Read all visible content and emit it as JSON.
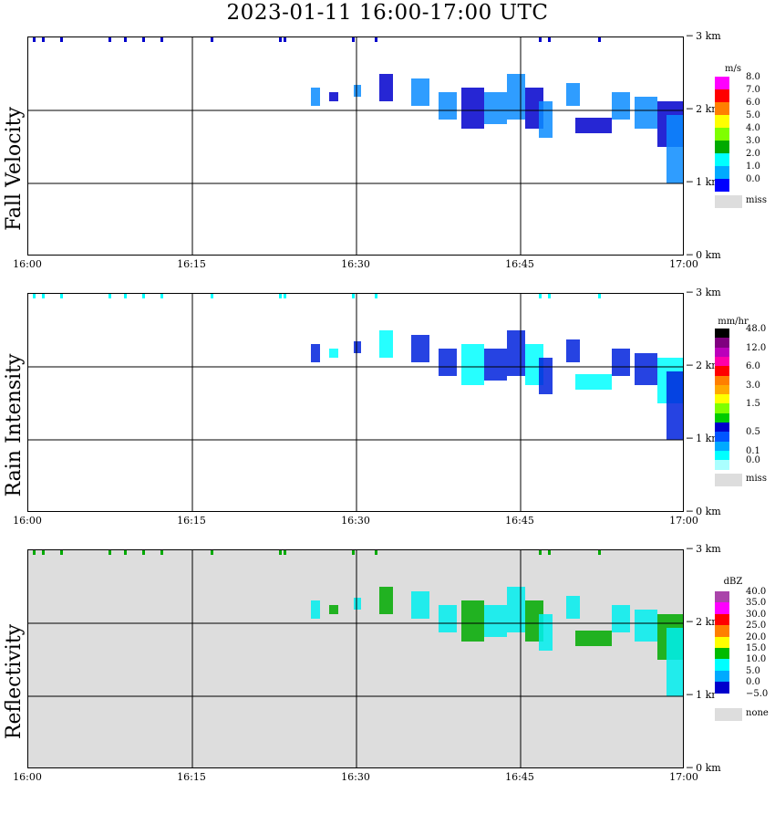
{
  "title": "2023-01-11   16:00-17:00 UTC",
  "chart_data": [
    {
      "type": "heatmap",
      "ylabel": "Fall Velocity",
      "unit": "m/s",
      "x_ticks": [
        "16:00",
        "16:15",
        "16:30",
        "16:45",
        "17:00"
      ],
      "y_ticks": [
        "0 km",
        "1 km",
        "2 km",
        "3 km"
      ],
      "xlim": [
        "16:00",
        "17:00"
      ],
      "ylim_km": [
        0,
        3
      ],
      "grid": true,
      "background": "#ffffff",
      "legend_title": "m/s",
      "legend": [
        {
          "label": "8.0",
          "color": "#ff00ff"
        },
        {
          "label": "7.0",
          "color": "#ff0000"
        },
        {
          "label": "6.0",
          "color": "#ff7f00"
        },
        {
          "label": "5.0",
          "color": "#ffff00"
        },
        {
          "label": "4.0",
          "color": "#7fff00"
        },
        {
          "label": "3.0",
          "color": "#00aa00"
        },
        {
          "label": "2.0",
          "color": "#00ffff"
        },
        {
          "label": "1.0",
          "color": "#00aaff"
        },
        {
          "label": "0.0",
          "color": "#0000ff"
        },
        {
          "label": "miss",
          "color": "#dddddd"
        }
      ],
      "dominant_color": "#0a8cff",
      "accent_color": "#0000cc"
    },
    {
      "type": "heatmap",
      "ylabel": "Rain Intensity",
      "unit": "mm/hr",
      "x_ticks": [
        "16:00",
        "16:15",
        "16:30",
        "16:45",
        "17:00"
      ],
      "y_ticks": [
        "0 km",
        "1 km",
        "2 km",
        "3 km"
      ],
      "xlim": [
        "16:00",
        "17:00"
      ],
      "ylim_km": [
        0,
        3
      ],
      "grid": true,
      "background": "#ffffff",
      "legend_title": "mm/hr",
      "legend": [
        {
          "label": "48.0",
          "color": "#000000"
        },
        {
          "label": "",
          "color": "#7f007f"
        },
        {
          "label": "12.0",
          "color": "#bb00bb"
        },
        {
          "label": "",
          "color": "#ff00aa"
        },
        {
          "label": "6.0",
          "color": "#ff0000"
        },
        {
          "label": "",
          "color": "#ff7f00"
        },
        {
          "label": "3.0",
          "color": "#ffaa00"
        },
        {
          "label": "",
          "color": "#ffff00"
        },
        {
          "label": "1.5",
          "color": "#7fff00"
        },
        {
          "label": "",
          "color": "#00cc00"
        },
        {
          "label": "",
          "color": "#0000cc"
        },
        {
          "label": "0.5",
          "color": "#0055ff"
        },
        {
          "label": "",
          "color": "#00aaff"
        },
        {
          "label": "0.1",
          "color": "#00ffff"
        },
        {
          "label": "0.0",
          "color": "#aaffff"
        },
        {
          "label": "miss",
          "color": "#dddddd"
        }
      ],
      "dominant_color": "#0022dd",
      "accent_color": "#00ffff"
    },
    {
      "type": "heatmap",
      "ylabel": "Reflectivity",
      "unit": "dBZ",
      "x_ticks": [
        "16:00",
        "16:15",
        "16:30",
        "16:45",
        "17:00"
      ],
      "y_ticks": [
        "0 km",
        "1 km",
        "2 km",
        "3 km"
      ],
      "xlim": [
        "16:00",
        "17:00"
      ],
      "ylim_km": [
        0,
        3
      ],
      "grid": true,
      "background": "#dddddd",
      "legend_title": "dBZ",
      "legend": [
        {
          "label": "40.0",
          "color": "#aa44aa"
        },
        {
          "label": "35.0",
          "color": "#ff00ff"
        },
        {
          "label": "30.0",
          "color": "#ff0000"
        },
        {
          "label": "25.0",
          "color": "#ff7f00"
        },
        {
          "label": "20.0",
          "color": "#ffff00"
        },
        {
          "label": "15.0",
          "color": "#00bb00"
        },
        {
          "label": "10.0",
          "color": "#00ffff"
        },
        {
          "label": "5.0",
          "color": "#00aaff"
        },
        {
          "label": "0.0",
          "color": "#0000cc"
        },
        {
          "label": "−5.0",
          "color": "#ffffff"
        },
        {
          "label": "none",
          "color": "#dddddd"
        }
      ],
      "dominant_color": "#00eeee",
      "accent_color": "#00aa00"
    }
  ]
}
